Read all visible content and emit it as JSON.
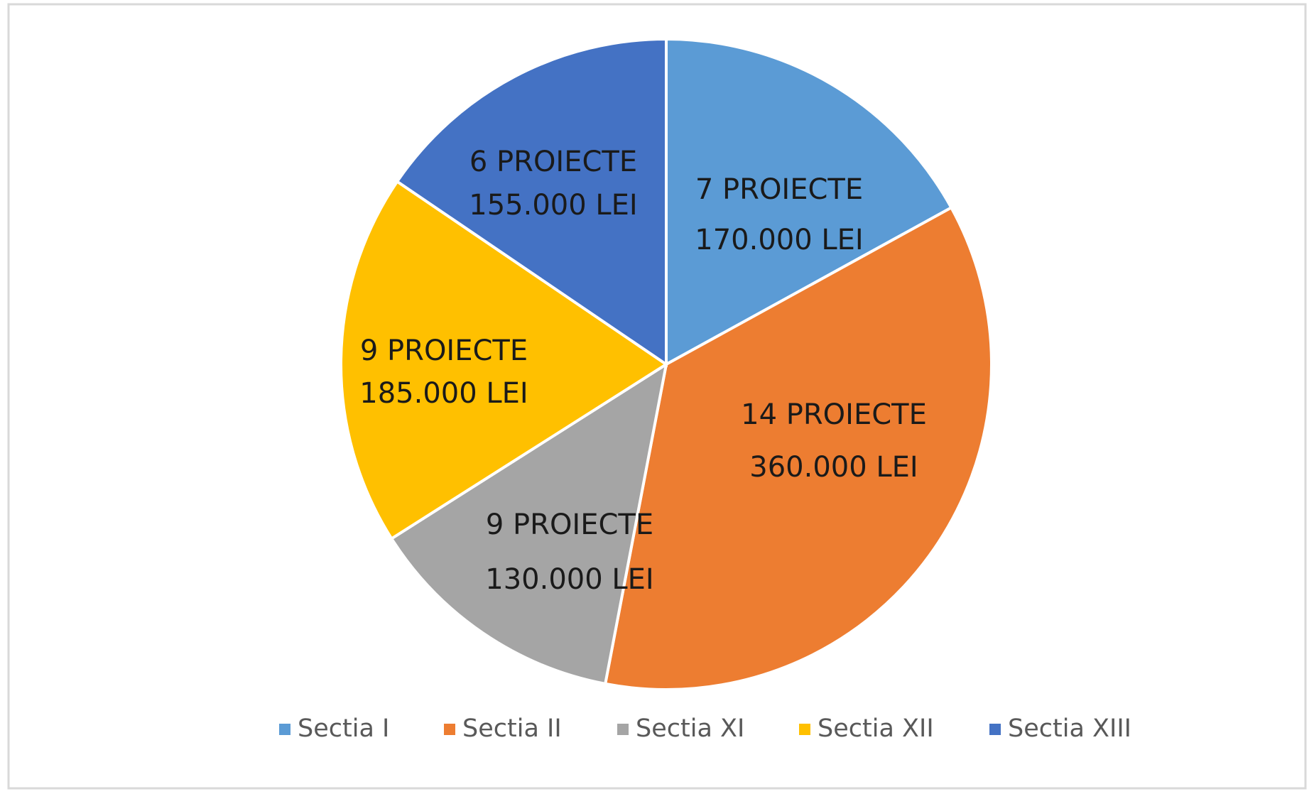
{
  "chart_data": {
    "type": "pie",
    "categories": [
      "Sectia I",
      "Sectia II",
      "Sectia XI",
      "Sectia XII",
      "Sectia XIII"
    ],
    "values": [
      170000,
      360000,
      130000,
      185000,
      155000
    ],
    "value_labels": [
      "170.000 LEI",
      "360.000 LEI",
      "130.000 LEI",
      "185.000 LEI",
      "155.000 LEI"
    ],
    "project_labels": [
      "7 PROIECTE",
      "14 PROIECTE",
      "9 PROIECTE",
      "9 PROIECTE",
      "6 PROIECTE"
    ],
    "colors": [
      "#5b9bd5",
      "#ed7d31",
      "#a5a5a5",
      "#ffc000",
      "#4472c4"
    ],
    "legend": "bottom"
  }
}
